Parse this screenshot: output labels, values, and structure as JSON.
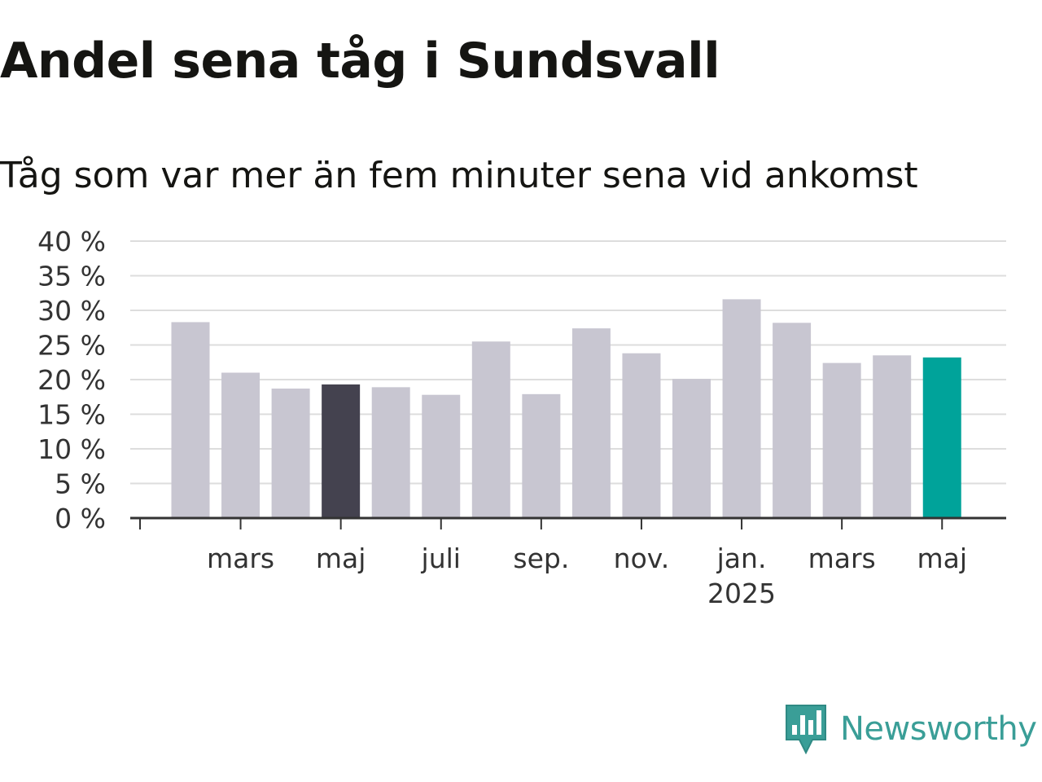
{
  "title": "Andel sena tåg i Sundsvall",
  "subtitle": "Tåg som var mer än fem minuter sena vid ankomst",
  "brand": {
    "name": "Newsworthy",
    "icon": "newsworthy-logo-icon",
    "color": "#3a9e97"
  },
  "colors": {
    "bar": "#c8c6d1",
    "highlight_dark": "#44424f",
    "highlight_latest": "#00a39a",
    "grid": "#dddddd",
    "axis": "#333333"
  },
  "chart_data": {
    "type": "bar",
    "categories": [
      "2024-02",
      "2024-03",
      "2024-04",
      "2024-05",
      "2024-06",
      "2024-07",
      "2024-08",
      "2024-09",
      "2024-10",
      "2024-11",
      "2024-12",
      "2025-01",
      "2025-02",
      "2025-03",
      "2025-04",
      "2025-05"
    ],
    "values": [
      28.3,
      21.0,
      18.7,
      19.3,
      18.9,
      17.8,
      25.5,
      17.9,
      27.4,
      23.8,
      20.1,
      31.6,
      28.2,
      22.4,
      23.5,
      23.2
    ],
    "highlight": {
      "2024-05": "dark",
      "2025-05": "latest"
    },
    "y_ticks": [
      "0 %",
      "5 %",
      "10 %",
      "15 %",
      "20 %",
      "25 %",
      "30 %",
      "35 %",
      "40 %"
    ],
    "x_ticks": [
      {
        "label": "mars",
        "category": "2024-03"
      },
      {
        "label": "maj",
        "category": "2024-05"
      },
      {
        "label": "juli",
        "category": "2024-07"
      },
      {
        "label": "sep.",
        "category": "2024-09"
      },
      {
        "label": "nov.",
        "category": "2024-11"
      },
      {
        "label": "jan.",
        "sub": "2025",
        "category": "2025-01"
      },
      {
        "label": "mars",
        "category": "2025-03"
      },
      {
        "label": "maj",
        "category": "2025-05"
      }
    ],
    "ylim": [
      0,
      40
    ],
    "grid": true,
    "xlabel": "",
    "ylabel": ""
  }
}
